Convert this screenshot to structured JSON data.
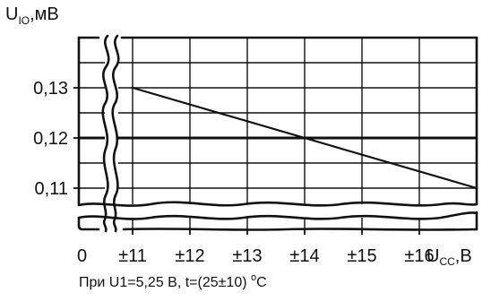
{
  "chart_data": {
    "type": "line",
    "ylabel": "U",
    "ylabel_sub": "IO",
    "ylabel_unit": ",мВ",
    "xlabel": "U",
    "xlabel_sub": "CC",
    "xlabel_unit": ",В",
    "x_zero_label": "0",
    "x_ticks": [
      11,
      12,
      13,
      14,
      15,
      16
    ],
    "x_tick_labels": [
      "±11",
      "±12",
      "±13",
      "±14",
      "±15",
      "±16"
    ],
    "xlim": [
      11,
      17
    ],
    "y_ticks": [
      0.11,
      0.12,
      0.13
    ],
    "y_tick_labels": [
      "0,11",
      "0,12",
      "0,13"
    ],
    "ylim": [
      0.1,
      0.14
    ],
    "grid": true,
    "axis_breaks": true,
    "reference_line": 0.12,
    "series": [
      {
        "x": [
          11,
          17
        ],
        "y": [
          0.13,
          0.11
        ]
      }
    ],
    "footnote": {
      "main": "При  U1=5,25 В,  t=(25±10) ",
      "superscript": "o",
      "tail": "C"
    }
  }
}
